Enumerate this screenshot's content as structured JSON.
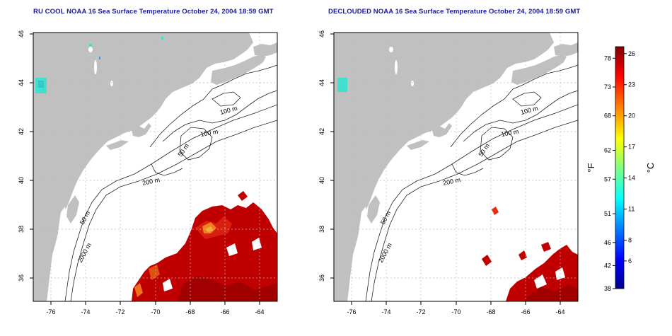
{
  "panels": [
    {
      "title": "RU COOL NOAA 16 Sea Surface Temperature October 24, 2004 18:59 GMT",
      "x_ticks": [
        "-76",
        "-74",
        "-72",
        "-70",
        "-68",
        "-66",
        "-64"
      ],
      "y_ticks": [
        "46",
        "44",
        "42",
        "40",
        "38",
        "36"
      ],
      "contour_labels": [
        "100 m",
        "100 m",
        "50 m",
        "200 m",
        "50 m",
        "2000 m"
      ]
    },
    {
      "title": "DECLOUDED NOAA 16 Sea Surface Temperature October 24, 2004 18:59 GMT",
      "x_ticks": [
        "-76",
        "-74",
        "-72",
        "-70",
        "-68",
        "-66",
        "-64"
      ],
      "y_ticks": [
        "46",
        "44",
        "42",
        "40",
        "38",
        "36"
      ],
      "contour_labels": [
        "100 m",
        "100 m",
        "50 m",
        "200 m",
        "50 m",
        "2000 m"
      ]
    }
  ],
  "colorbar": {
    "fahrenheit_label": "°F",
    "celsius_label": "°C",
    "fahrenheit_ticks": [
      "78",
      "73",
      "68",
      "62",
      "57",
      "51",
      "46",
      "42",
      "38"
    ],
    "celsius_ticks": [
      "26",
      "23",
      "20",
      "17",
      "14",
      "11",
      "8",
      "6"
    ],
    "fahrenheit_values": [
      78,
      73,
      68,
      62,
      57,
      51,
      46,
      42,
      38
    ],
    "celsius_values": [
      26,
      23,
      20,
      17,
      14,
      11,
      8,
      6
    ],
    "range_f": [
      38,
      80
    ],
    "colors": [
      "#00008f",
      "#0000ff",
      "#0080ff",
      "#00ffff",
      "#80ff80",
      "#ffff00",
      "#ff8000",
      "#ff0000",
      "#800000"
    ]
  },
  "colors": {
    "land": "#c0c0c0",
    "ocean": "#ffffff",
    "title": "#1a1aa6",
    "sst_warm": "#c00000",
    "sst_hot": "#e03010",
    "sst_orange": "#f08020",
    "sst_cool": "#40e0d0"
  }
}
